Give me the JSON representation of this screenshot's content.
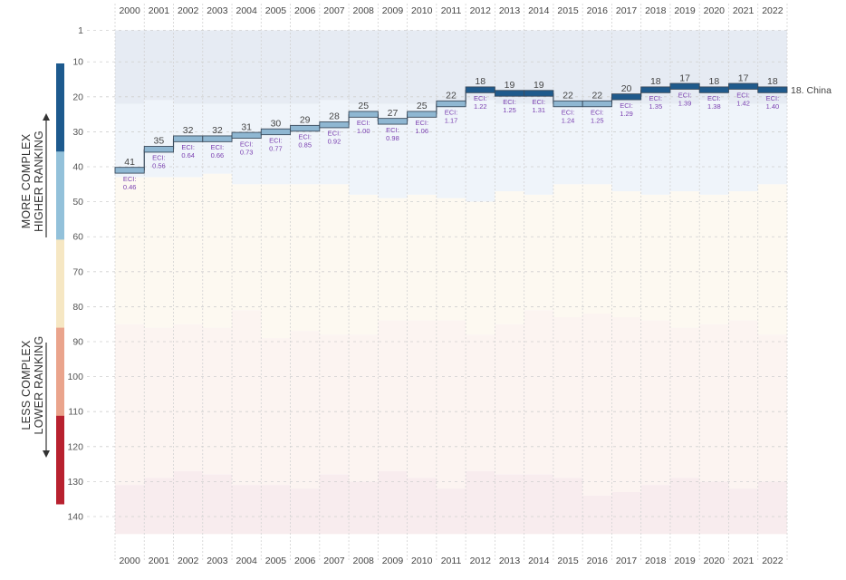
{
  "chart_data": {
    "type": "line",
    "x": [
      2000,
      2001,
      2002,
      2003,
      2004,
      2005,
      2006,
      2007,
      2008,
      2009,
      2010,
      2011,
      2012,
      2013,
      2014,
      2015,
      2016,
      2017,
      2018,
      2019,
      2020,
      2021,
      2022
    ],
    "series": [
      {
        "name": "China",
        "rank": [
          41,
          35,
          32,
          32,
          31,
          30,
          29,
          28,
          25,
          27,
          25,
          22,
          18,
          19,
          19,
          22,
          22,
          20,
          18,
          17,
          18,
          17,
          18
        ],
        "eci": [
          "0.46",
          "0.56",
          "0.64",
          "0.66",
          "0.73",
          "0.77",
          "0.85",
          "0.92",
          "1.00",
          "0.98",
          "1.06",
          "1.17",
          "1.22",
          "1.25",
          "1.31",
          "1.24",
          "1.25",
          "1.29",
          "1.35",
          "1.39",
          "1.38",
          "1.42",
          "1.40"
        ]
      }
    ],
    "ylim": [
      1,
      145
    ],
    "y_reversed": true,
    "y_ticks": [
      1,
      10,
      20,
      30,
      40,
      50,
      60,
      70,
      80,
      90,
      100,
      110,
      120,
      130,
      140
    ],
    "eci_prefix": "ECI:",
    "end_label": "18. China",
    "side_labels": {
      "top_line1": "MORE COMPLEX",
      "top_line2": "HIGHER RANKING",
      "bottom_line1": "LESS COMPLEX",
      "bottom_line2": "LOWER RANKING"
    },
    "bands": [
      {
        "color": "#e6ebf3",
        "top": [
          1,
          1,
          1,
          1,
          1,
          1,
          1,
          1,
          1,
          1,
          1,
          1,
          1,
          1,
          1,
          1,
          1,
          1,
          1,
          1,
          1,
          1,
          1
        ],
        "bottom": [
          22,
          21,
          22,
          22,
          22,
          22,
          22,
          21,
          22,
          22,
          22,
          22,
          21,
          22,
          22,
          21,
          22,
          22,
          22,
          22,
          21,
          22,
          22
        ]
      },
      {
        "color": "#eff4fa",
        "top": [
          22,
          21,
          22,
          22,
          22,
          22,
          22,
          21,
          22,
          22,
          22,
          22,
          21,
          22,
          22,
          21,
          22,
          22,
          22,
          22,
          21,
          22,
          22
        ],
        "bottom": [
          43,
          43,
          43,
          42,
          45,
          45,
          45,
          45,
          48,
          49,
          48,
          49,
          50,
          47,
          48,
          45,
          45,
          47,
          48,
          47,
          48,
          47,
          45
        ]
      },
      {
        "color": "#fdf9f1",
        "top": [
          43,
          43,
          43,
          42,
          45,
          45,
          45,
          45,
          48,
          49,
          48,
          49,
          50,
          47,
          48,
          45,
          45,
          47,
          48,
          47,
          48,
          47,
          45
        ],
        "bottom": [
          85,
          86,
          85,
          86,
          81,
          89,
          87,
          88,
          88,
          84,
          84,
          84,
          88,
          85,
          81,
          83,
          82,
          83,
          84,
          86,
          85,
          84,
          88
        ]
      },
      {
        "color": "#fcf4f1",
        "top": [
          85,
          86,
          85,
          86,
          81,
          89,
          87,
          88,
          88,
          84,
          84,
          84,
          88,
          85,
          81,
          83,
          82,
          83,
          84,
          86,
          85,
          84,
          88
        ],
        "bottom": [
          131,
          129,
          127,
          128,
          131,
          131,
          132,
          128,
          130,
          127,
          129,
          132,
          127,
          128,
          128,
          129,
          134,
          133,
          131,
          129,
          130,
          132,
          130
        ]
      },
      {
        "color": "#f8ecee",
        "top": [
          131,
          129,
          127,
          128,
          131,
          131,
          132,
          128,
          130,
          127,
          129,
          132,
          127,
          128,
          128,
          129,
          134,
          133,
          131,
          129,
          130,
          132,
          130
        ],
        "bottom": [
          145,
          145,
          145,
          145,
          145,
          145,
          145,
          145,
          145,
          145,
          145,
          145,
          145,
          145,
          145,
          145,
          145,
          145,
          145,
          145,
          145,
          145,
          145
        ]
      }
    ],
    "color_scale": [
      "#1d5a8e",
      "#93c1da",
      "#f6e7c3",
      "#eaa48c",
      "#b8212f"
    ]
  }
}
